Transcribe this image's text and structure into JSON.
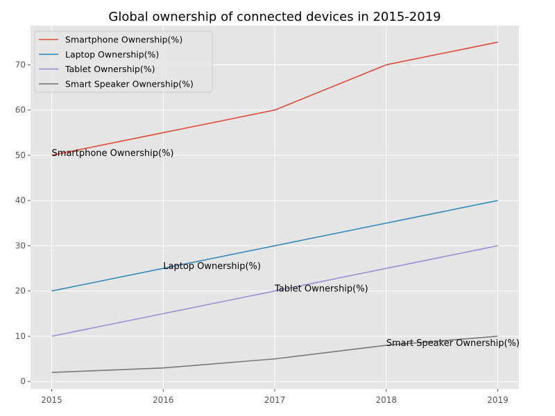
{
  "chart_data": {
    "type": "line",
    "title": "Global ownership of connected devices in 2015-2019",
    "xlabel": "",
    "ylabel": "",
    "x": [
      2015,
      2016,
      2017,
      2018,
      2019
    ],
    "x_tick_labels": [
      "2015",
      "2016",
      "2017",
      "2018",
      "2019"
    ],
    "y_ticks": [
      0,
      10,
      20,
      30,
      40,
      50,
      60,
      70
    ],
    "y_tick_labels": [
      "0",
      "10",
      "20",
      "30",
      "40",
      "50",
      "60",
      "70"
    ],
    "xlim": [
      2014.81,
      2019.19
    ],
    "ylim": [
      -1.65,
      78.65
    ],
    "grid": true,
    "legend_position": "upper-left",
    "series": [
      {
        "name": "Smartphone Ownership(%)",
        "color": "#E24A33",
        "values": [
          50,
          55,
          60,
          70,
          75
        ]
      },
      {
        "name": "Laptop Ownership(%)",
        "color": "#348ABD",
        "values": [
          20,
          25,
          30,
          35,
          40
        ]
      },
      {
        "name": "Tablet Ownership(%)",
        "color": "#988ED5",
        "values": [
          10,
          15,
          20,
          25,
          30
        ]
      },
      {
        "name": "Smart Speaker Ownership(%)",
        "color": "#777777",
        "values": [
          2,
          3,
          5,
          8,
          10
        ]
      }
    ],
    "annotations": [
      {
        "text": "Smartphone Ownership(%)",
        "x": 2015,
        "y": 50
      },
      {
        "text": "Laptop Ownership(%)",
        "x": 2016,
        "y": 25
      },
      {
        "text": "Tablet Ownership(%)",
        "x": 2017,
        "y": 20
      },
      {
        "text": "Smart Speaker Ownership(%)",
        "x": 2018,
        "y": 8
      }
    ]
  }
}
